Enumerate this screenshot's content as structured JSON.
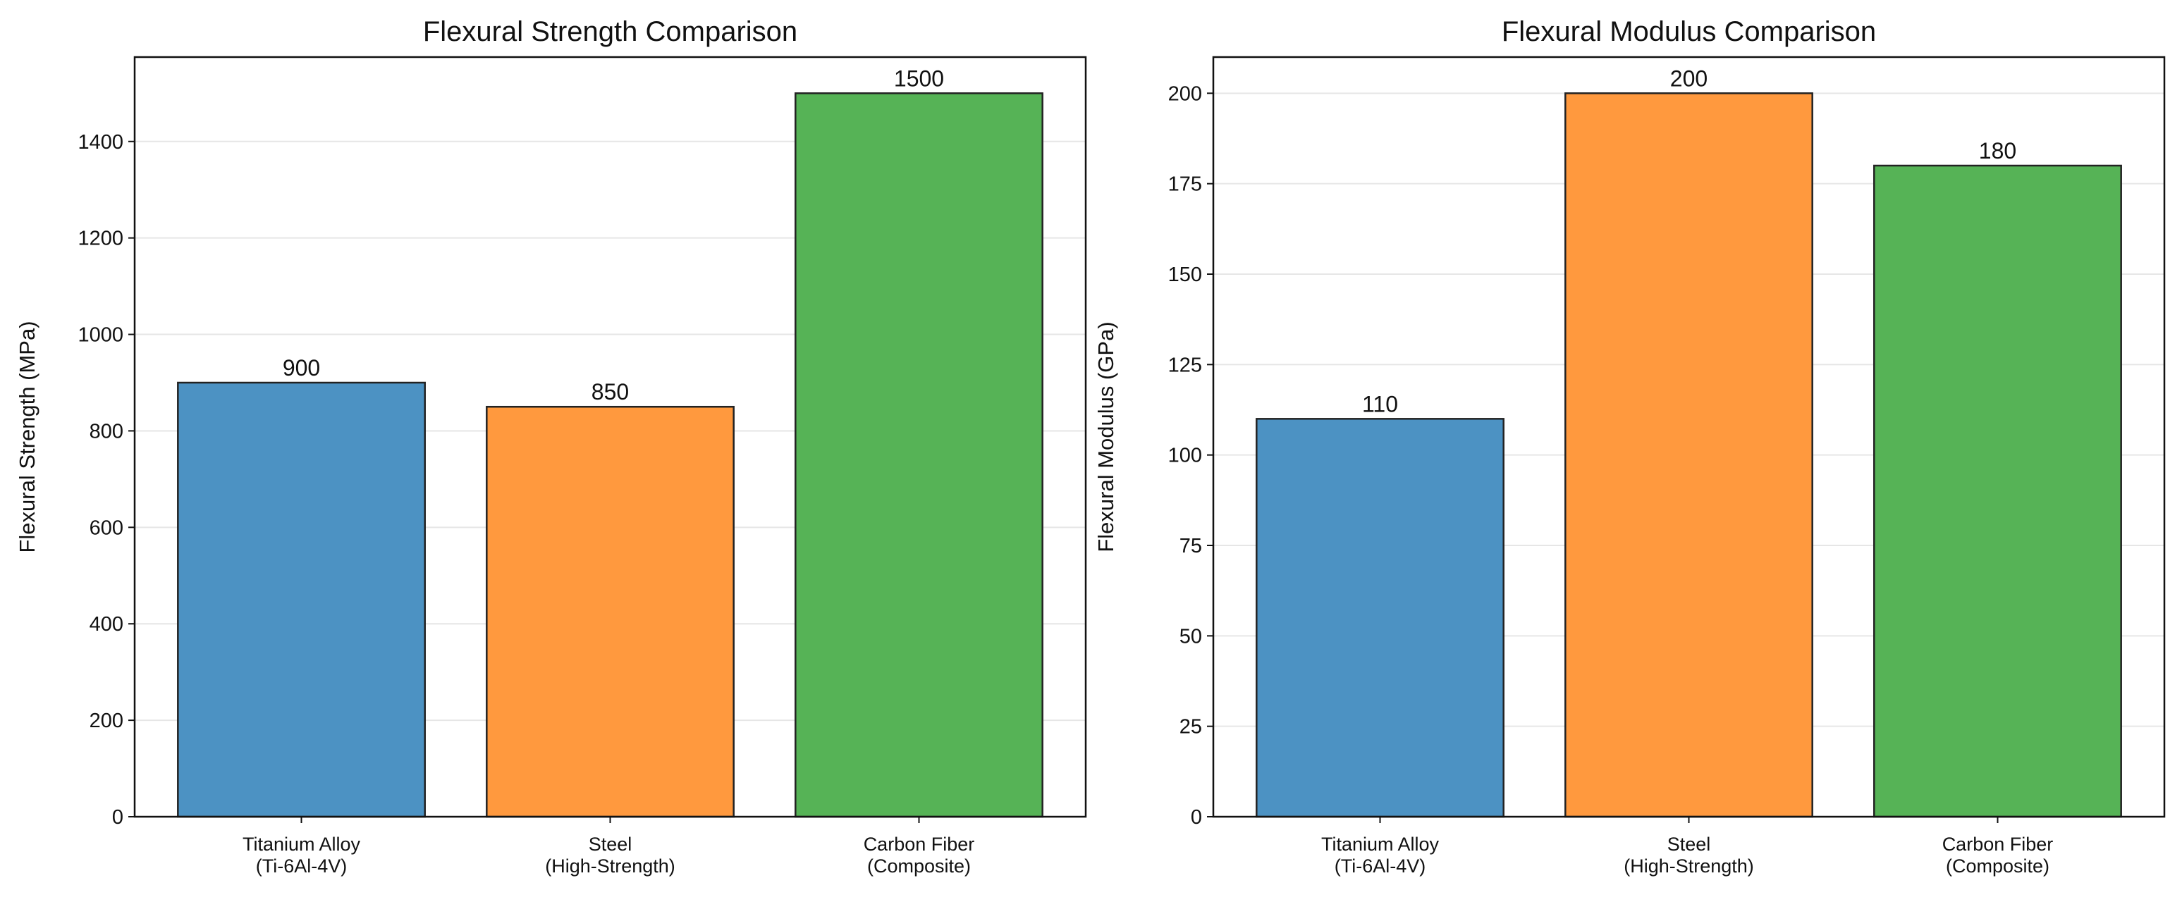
{
  "chart_data": [
    {
      "type": "bar",
      "title": "Flexural Strength Comparison",
      "xlabel": "",
      "ylabel": "Flexural Strength (MPa)",
      "categories": [
        [
          "Titanium Alloy",
          "(Ti-6Al-4V)"
        ],
        [
          "Steel",
          "(High-Strength)"
        ],
        [
          "Carbon Fiber",
          "(Composite)"
        ]
      ],
      "values": [
        900,
        850,
        1500
      ],
      "value_labels": [
        "900",
        "850",
        "1500"
      ],
      "colors": [
        "#4c92c3",
        "#ff993e",
        "#56b356"
      ],
      "ylim": [
        0,
        1575
      ],
      "yticks": [
        0,
        200,
        400,
        600,
        800,
        1000,
        1200,
        1400
      ],
      "grid": "y"
    },
    {
      "type": "bar",
      "title": "Flexural Modulus Comparison",
      "xlabel": "",
      "ylabel": "Flexural Modulus (GPa)",
      "categories": [
        [
          "Titanium Alloy",
          "(Ti-6Al-4V)"
        ],
        [
          "Steel",
          "(High-Strength)"
        ],
        [
          "Carbon Fiber",
          "(Composite)"
        ]
      ],
      "values": [
        110,
        200,
        180
      ],
      "value_labels": [
        "110",
        "200",
        "180"
      ],
      "colors": [
        "#4c92c3",
        "#ff993e",
        "#56b356"
      ],
      "ylim": [
        0,
        210
      ],
      "yticks": [
        0,
        25,
        50,
        75,
        100,
        125,
        150,
        175,
        200
      ],
      "grid": "y"
    }
  ]
}
